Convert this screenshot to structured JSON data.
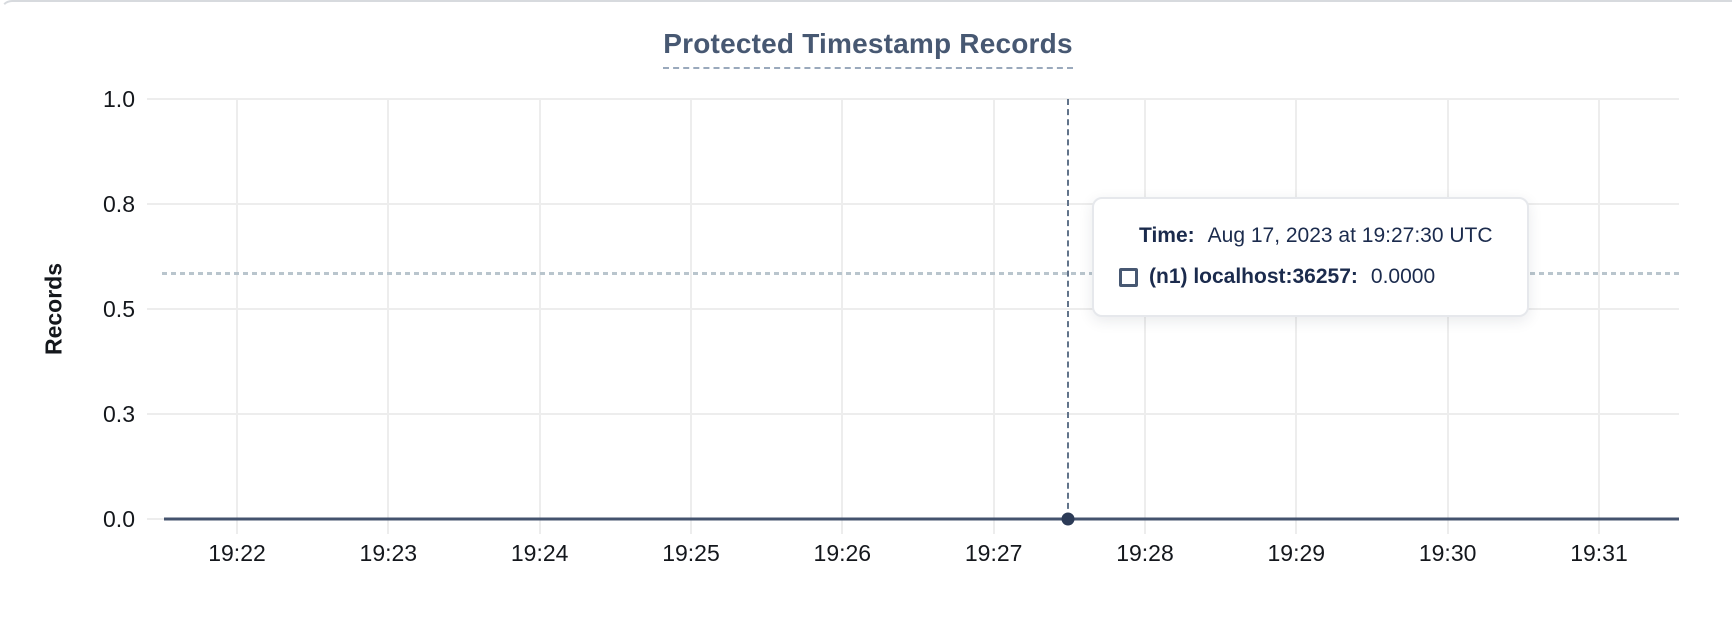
{
  "chart": {
    "title": "Protected Timestamp Records",
    "ylabel": "Records",
    "y_ticks": [
      "1.0",
      "0.8",
      "0.5",
      "0.3",
      "0.0"
    ],
    "x_ticks": [
      "19:22",
      "19:23",
      "19:24",
      "19:25",
      "19:26",
      "19:27",
      "19:28",
      "19:29",
      "19:30",
      "19:31"
    ]
  },
  "tooltip": {
    "time_label": "Time:",
    "time_value": "Aug 17, 2023 at 19:27:30 UTC",
    "series_label": "(n1) localhost:36257:",
    "series_value": "0.0000",
    "legend_marker_icon": "square-outline-icon"
  },
  "colors": {
    "title": "#475872",
    "series_line": "#44536e",
    "hover_dot": "#2c3b57",
    "crosshair_vertical": "#61738a",
    "crosshair_horizontal": "#b9c5cd",
    "gridline": "#ededed",
    "tooltip_text": "#1b2b4d"
  },
  "chart_data": {
    "type": "line",
    "title": "Protected Timestamp Records",
    "xlabel": "",
    "ylabel": "Records",
    "x": [
      "19:22",
      "19:23",
      "19:24",
      "19:25",
      "19:26",
      "19:27",
      "19:28",
      "19:29",
      "19:30",
      "19:31"
    ],
    "y_tick_labels": [
      "0.0",
      "0.3",
      "0.5",
      "0.8",
      "1.0"
    ],
    "ylim": [
      0.0,
      1.0
    ],
    "grid": true,
    "legend_position": "tooltip-only",
    "series": [
      {
        "name": "(n1) localhost:36257",
        "values": [
          0,
          0,
          0,
          0,
          0,
          0,
          0,
          0,
          0,
          0
        ]
      }
    ],
    "hover_point": {
      "x": "19:27:30",
      "time": "Aug 17, 2023 at 19:27:30 UTC",
      "value": 0.0,
      "crosshair_y_value": 0.59
    }
  }
}
